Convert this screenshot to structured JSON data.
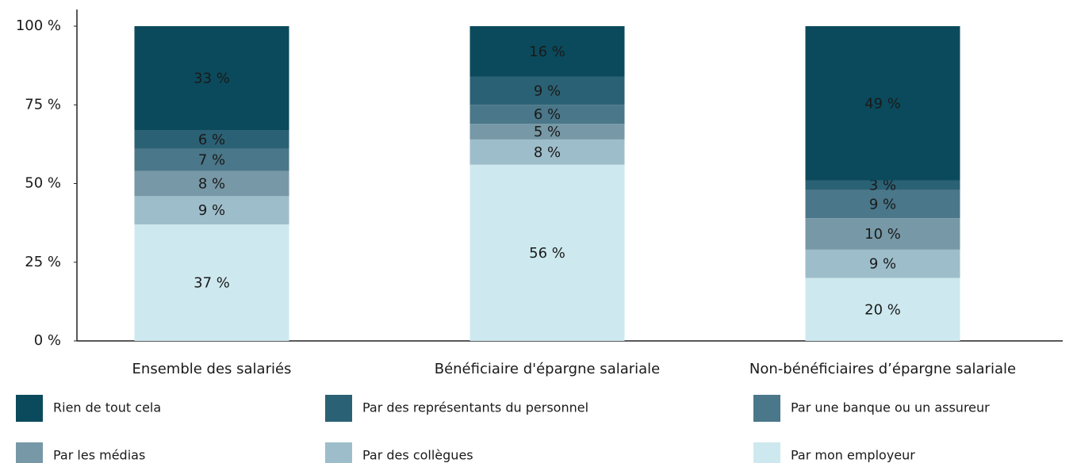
{
  "chart_data": {
    "type": "stacked_bar",
    "categories": [
      "Ensemble des salariés",
      "Bénéficiaire d'épargne salariale",
      "Non-bénéficiaires d’épargne salariale"
    ],
    "series": [
      {
        "name": "Par mon employeur",
        "color": "#cde9ef",
        "label_color": "#0b4a5c",
        "values": [
          37,
          56,
          20
        ],
        "value_labels": [
          "37 %",
          "56 %",
          "20 %"
        ]
      },
      {
        "name": "Par des collègues",
        "color": "#9dbdca",
        "label_color": "#ffffff",
        "values": [
          9,
          8,
          9
        ],
        "value_labels": [
          "9 %",
          "8 %",
          "9 %"
        ]
      },
      {
        "name": "Par les médias",
        "color": "#7798a6",
        "label_color": "#ffffff",
        "values": [
          8,
          5,
          10
        ],
        "value_labels": [
          "8 %",
          "5 %",
          "10 %"
        ]
      },
      {
        "name": "Par une banque ou un assureur",
        "color": "#4a7789",
        "label_color": "#ffffff",
        "values": [
          7,
          6,
          9
        ],
        "value_labels": [
          "7 %",
          "6 %",
          "9 %"
        ]
      },
      {
        "name": "Par des représentants du personnel",
        "color": "#2b6174",
        "label_color": "#ffffff",
        "values": [
          6,
          9,
          3
        ],
        "value_labels": [
          "6 %",
          "9 %",
          "3 %"
        ]
      },
      {
        "name": "Rien de tout cela",
        "color": "#0b4a5c",
        "label_color": "#ffffff",
        "values": [
          33,
          16,
          49
        ],
        "value_labels": [
          "33 %",
          "16 %",
          "49 %"
        ]
      }
    ],
    "ylim": [
      0,
      100
    ],
    "yticks": [
      {
        "value": 0,
        "label": "0 %"
      },
      {
        "value": 25,
        "label": "25 %"
      },
      {
        "value": 50,
        "label": "50 %"
      },
      {
        "value": 75,
        "label": "75 %"
      },
      {
        "value": 100,
        "label": "100 %"
      }
    ],
    "grid": false
  }
}
